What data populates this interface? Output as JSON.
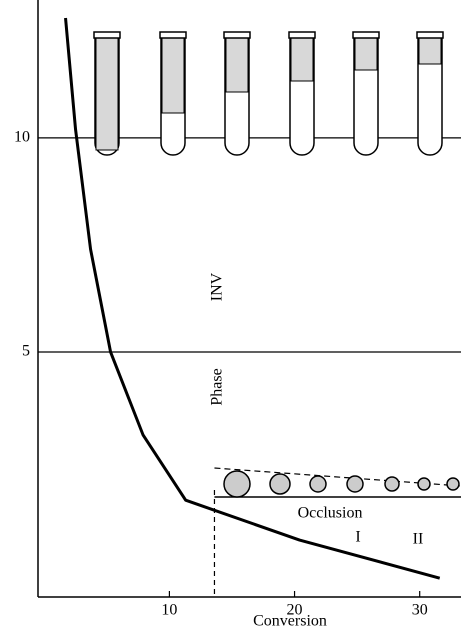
{
  "chart_data": {
    "type": "line",
    "x": [
      1.7,
      2.5,
      3.7,
      5.3,
      7.9,
      11.3,
      20.4,
      31.6
    ],
    "series": [
      {
        "color": "#000000",
        "values": [
          12.8,
          10.2,
          7.4,
          5.0,
          3.06,
          1.54,
          0.61,
          -0.28
        ]
      }
    ],
    "xlim": [
      -0.5,
      33.3
    ],
    "ylim": [
      -0.72,
      13.22
    ],
    "xticks": [
      10,
      20,
      30
    ],
    "yticks": [
      5,
      10
    ],
    "xlabel": "Conversion",
    "phase_inversion_x": 13.6,
    "annotations": {
      "phase": "Phase",
      "inv": "INV",
      "occlusion": "Occlusion",
      "region_1": "I",
      "region_2": "II"
    }
  }
}
